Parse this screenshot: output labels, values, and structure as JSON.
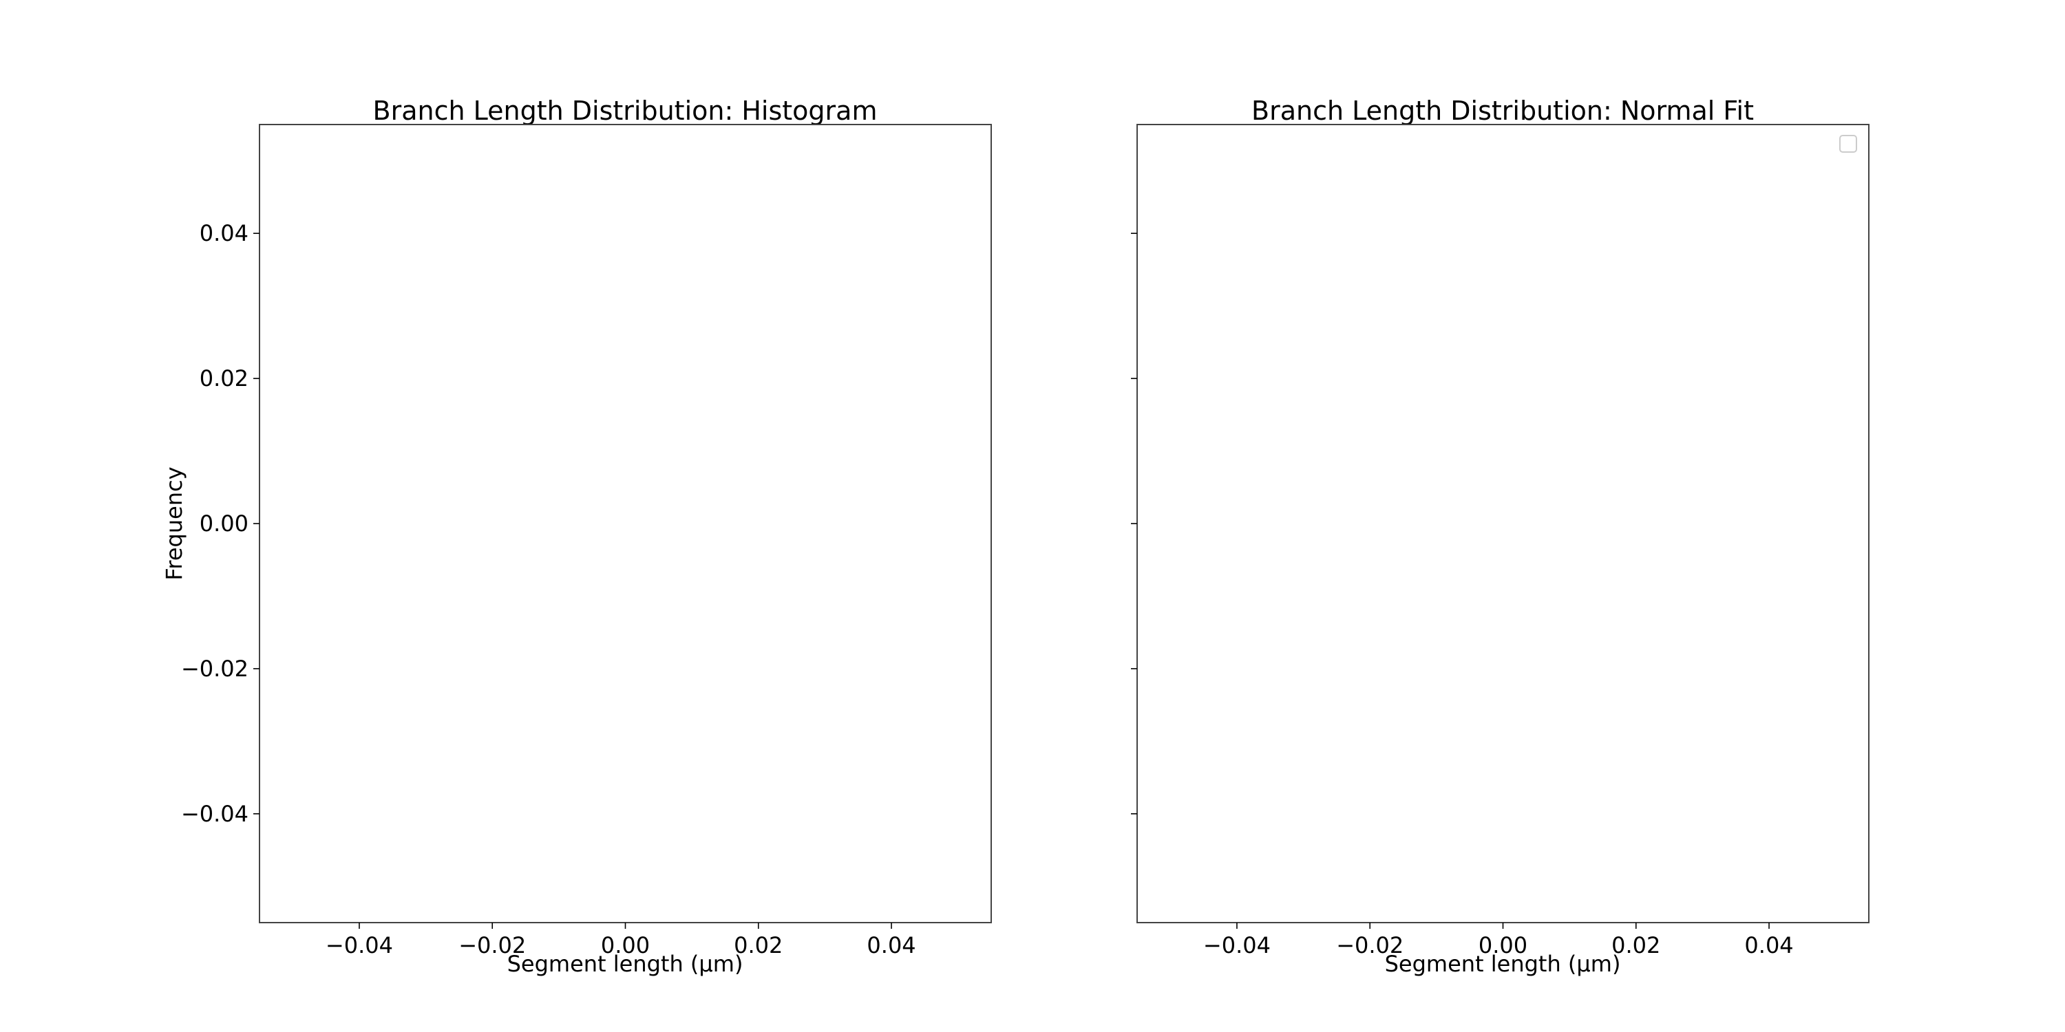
{
  "chart_data": [
    {
      "type": "bar",
      "title": "Branch Length Distribution: Histogram",
      "xlabel": "Segment length (μm)",
      "ylabel": "Frequency",
      "xlim": [
        -0.055,
        0.055
      ],
      "ylim": [
        -0.055,
        0.055
      ],
      "xticks": [
        -0.04,
        -0.02,
        0.0,
        0.02,
        0.04
      ],
      "xtick_labels": [
        "−0.04",
        "−0.02",
        "0.00",
        "0.02",
        "0.04"
      ],
      "yticks": [
        -0.04,
        -0.02,
        0.0,
        0.02,
        0.04
      ],
      "ytick_labels": [
        "−0.04",
        "−0.02",
        "0.00",
        "0.02",
        "0.04"
      ],
      "show_ytick_labels": true,
      "grid": false,
      "legend": null,
      "categories": [],
      "values": []
    },
    {
      "type": "line",
      "title": "Branch Length Distribution: Normal Fit",
      "xlabel": "Segment length (μm)",
      "ylabel": "",
      "xlim": [
        -0.055,
        0.055
      ],
      "ylim": [
        -0.055,
        0.055
      ],
      "xticks": [
        -0.04,
        -0.02,
        0.0,
        0.02,
        0.04
      ],
      "xtick_labels": [
        "−0.04",
        "−0.02",
        "0.00",
        "0.02",
        "0.04"
      ],
      "yticks": [
        -0.04,
        -0.02,
        0.0,
        0.02,
        0.04
      ],
      "ytick_labels": [],
      "show_ytick_labels": false,
      "grid": false,
      "legend": "top-right",
      "series": []
    }
  ]
}
